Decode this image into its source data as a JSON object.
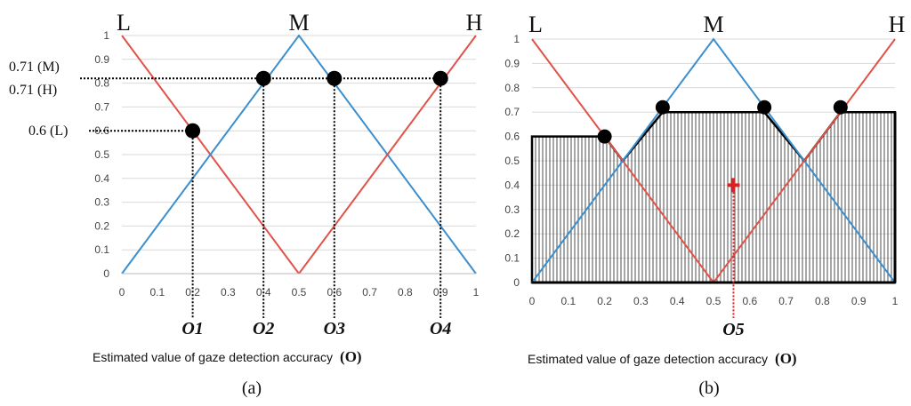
{
  "chart_data": [
    {
      "type": "line",
      "panel": "(a)",
      "xlabel": "Estimated value of gaze detection accuracy",
      "xlabel_symbol": "(O)",
      "xlim": [
        0,
        1
      ],
      "ylim": [
        0,
        1
      ],
      "x_ticks": [
        0,
        0.1,
        0.2,
        0.3,
        0.4,
        0.5,
        0.6,
        0.7,
        0.8,
        0.9,
        1
      ],
      "y_ticks": [
        0,
        0.1,
        0.2,
        0.3,
        0.4,
        0.5,
        0.6,
        0.7,
        0.8,
        0.9,
        1
      ],
      "grid": true,
      "series": [
        {
          "name": "L",
          "color": "#e0534a",
          "x": [
            0,
            0.5,
            1
          ],
          "y": [
            1,
            0,
            1
          ]
        },
        {
          "name": "M",
          "color": "#3a8fd0",
          "x": [
            0,
            0.5,
            1
          ],
          "y": [
            0,
            1,
            0
          ]
        },
        {
          "name": "H",
          "color": "#e0534a",
          "x": [
            0,
            0.5,
            1
          ],
          "y": [
            1,
            0,
            1
          ]
        }
      ],
      "points": [
        {
          "label": "O1",
          "x": 0.2,
          "y": 0.6
        },
        {
          "label": "O2",
          "x": 0.4,
          "y": 0.82
        },
        {
          "label": "O3",
          "x": 0.6,
          "y": 0.82
        },
        {
          "label": "O4",
          "x": 0.9,
          "y": 0.82
        }
      ],
      "left_annotations": [
        "0.71 (M)",
        "0.71 (H)",
        "0.6 (L)"
      ]
    },
    {
      "type": "area",
      "panel": "(b)",
      "xlabel": "Estimated value of gaze detection accuracy",
      "xlabel_symbol": "(O)",
      "xlim": [
        0,
        1
      ],
      "ylim": [
        0,
        1
      ],
      "x_ticks": [
        0,
        0.1,
        0.2,
        0.3,
        0.4,
        0.5,
        0.6,
        0.7,
        0.8,
        0.9,
        1
      ],
      "y_ticks": [
        0,
        0.1,
        0.2,
        0.3,
        0.4,
        0.5,
        0.6,
        0.7,
        0.8,
        0.9,
        1
      ],
      "grid": true,
      "series": [
        {
          "name": "L",
          "color": "#e0534a",
          "x": [
            0,
            0.5,
            1
          ],
          "y": [
            1,
            0,
            1
          ]
        },
        {
          "name": "M",
          "color": "#3a8fd0",
          "x": [
            0,
            0.5,
            1
          ],
          "y": [
            0,
            1,
            0
          ]
        },
        {
          "name": "H",
          "color": "#e0534a",
          "x": [
            0,
            0.5,
            1
          ],
          "y": [
            1,
            0,
            1
          ]
        }
      ],
      "clipped_region": {
        "x": [
          0,
          0,
          0.2,
          0.25,
          0.36,
          0.64,
          0.75,
          0.85,
          1,
          1
        ],
        "y": [
          0,
          0.6,
          0.6,
          0.5,
          0.7,
          0.7,
          0.5,
          0.7,
          0.7,
          0
        ]
      },
      "points": [
        {
          "x": 0.2,
          "y": 0.6
        },
        {
          "x": 0.36,
          "y": 0.72
        },
        {
          "x": 0.64,
          "y": 0.72
        },
        {
          "x": 0.85,
          "y": 0.72
        }
      ],
      "centroid": {
        "label": "O5",
        "x": 0.555,
        "y": 0.4,
        "color": "#e02020"
      }
    }
  ],
  "labels": {
    "L": "L",
    "M": "M",
    "H": "H"
  },
  "panel_a": {
    "tag": "(a)",
    "annotations": [
      "0.71 (M)",
      "0.71 (H)",
      "0.6 (L)"
    ],
    "o_labels": [
      "O1",
      "O2",
      "O3",
      "O4"
    ],
    "xlabel": "Estimated value of gaze detection accuracy",
    "xlabel_symbol": "(O)"
  },
  "panel_b": {
    "tag": "(b)",
    "o_labels": [
      "O5"
    ],
    "xlabel": "Estimated value of gaze detection accuracy",
    "xlabel_symbol": "(O)"
  }
}
